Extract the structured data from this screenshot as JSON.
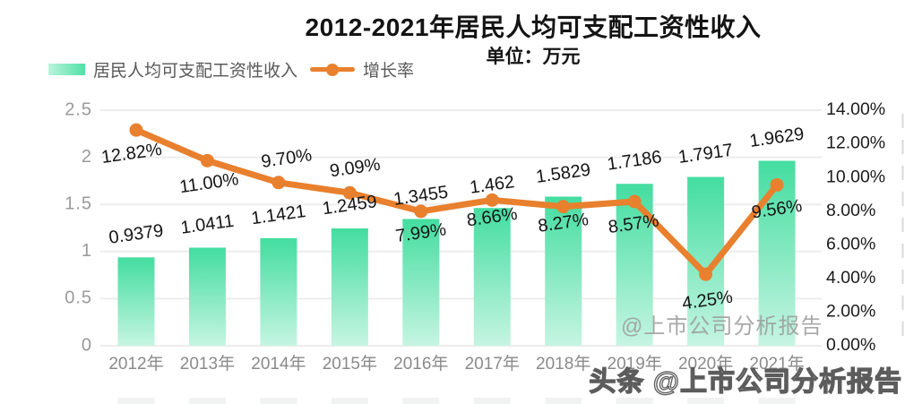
{
  "header": {
    "title": "2012-2021年居民人均可支配工资性收入",
    "subtitle": "单位：万元"
  },
  "legend": [
    {
      "label": "居民人均可支配工资性收入",
      "marker": "bar-swatch"
    },
    {
      "label": "增长率",
      "marker": "line-dot"
    }
  ],
  "watermarks": {
    "center": "@上市公司分析报告",
    "bottom": "头条 @上市公司分析报告"
  },
  "colors": {
    "bar_top": "#43dda0",
    "bar_bottom": "#c6f5e2",
    "line": "#e8802e",
    "grid": "#ededed",
    "left_axis_text": "#9a9a9a",
    "right_axis_text": "#1b1b1b",
    "x_axis_text": "#8a8a8a",
    "data_label_text": "#141414",
    "right_tick_line": "#d9d9d9"
  },
  "chart_data": {
    "type": "bar+line combo",
    "title": "2012-2021年居民人均可支配工资性收入",
    "unit": "万元",
    "categories": [
      "2012年",
      "2013年",
      "2014年",
      "2015年",
      "2016年",
      "2017年",
      "2018年",
      "2019年",
      "2020年",
      "2021年"
    ],
    "series": [
      {
        "name": "居民人均可支配工资性收入",
        "type": "bar",
        "axis": "left",
        "values": [
          0.9379,
          1.0411,
          1.1421,
          1.2459,
          1.3455,
          1.462,
          1.5829,
          1.7186,
          1.7917,
          1.9629
        ],
        "labels": [
          "0.9379",
          "1.0411",
          "1.1421",
          "1.2459",
          "1.3455",
          "1.462",
          "1.5829",
          "1.7186",
          "1.7917",
          "1.9629"
        ]
      },
      {
        "name": "增长率",
        "type": "line",
        "axis": "right",
        "values": [
          12.82,
          11.0,
          9.7,
          9.09,
          7.99,
          8.66,
          8.27,
          8.57,
          4.25,
          9.56
        ],
        "labels": [
          "12.82%",
          "11.00%",
          "9.70%",
          "9.09%",
          "7.99%",
          "8.66%",
          "8.27%",
          "8.57%",
          "4.25%",
          "9.56%"
        ]
      }
    ],
    "left_axis": {
      "min": 0,
      "max": 2.5,
      "ticks": [
        "0",
        "0.5",
        "1",
        "1.5",
        "2",
        "2.5"
      ]
    },
    "right_axis": {
      "min": 0,
      "max": 14,
      "ticks": [
        "0.00%",
        "2.00%",
        "4.00%",
        "6.00%",
        "8.00%",
        "10.00%",
        "12.00%",
        "14.00%"
      ]
    },
    "grid": true,
    "legend_position": "top-left"
  }
}
